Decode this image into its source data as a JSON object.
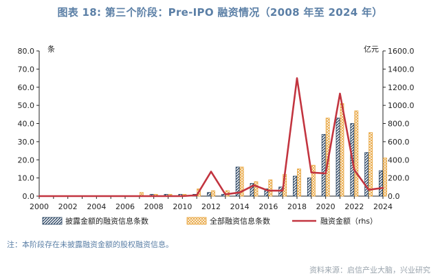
{
  "title": "图表 18: 第三个阶段：Pre-IPO 融资情况（2008 年至 2024 年）",
  "note": "注：本阶段存在未披露融资金额的股权融资信息。",
  "source": "资料来源：启信产业大脑，兴业研究",
  "colors": {
    "title": "#5b7fa6",
    "disclosed_bar": "#1f3b5a",
    "total_bar": "#e8a33a",
    "amount_line": "#c2343f"
  },
  "chart_data": {
    "type": "bar+line",
    "categories": [
      "2000",
      "2001",
      "2002",
      "2003",
      "2004",
      "2005",
      "2006",
      "2007",
      "2008",
      "2009",
      "2010",
      "2011",
      "2012",
      "2013",
      "2014",
      "2015",
      "2016",
      "2017",
      "2018",
      "2019",
      "2020",
      "2021",
      "2022",
      "2023",
      "2024"
    ],
    "x_tick_labels": [
      "2000",
      "2002",
      "2004",
      "2006",
      "2008",
      "2010",
      "2012",
      "2014",
      "2016",
      "2018",
      "2020",
      "2022",
      "2024"
    ],
    "y_left": {
      "unit": "条",
      "ylim": [
        0,
        80
      ],
      "ticks": [
        "0.0",
        "10.0",
        "20.0",
        "30.0",
        "40.0",
        "50.0",
        "60.0",
        "70.0",
        "80.0"
      ]
    },
    "y_right": {
      "unit": "亿元",
      "ylim": [
        0,
        1600
      ],
      "ticks": [
        "0.0",
        "200.0",
        "400.0",
        "600.0",
        "800.0",
        "1000.0",
        "1200.0",
        "1400.0",
        "1600.0"
      ]
    },
    "series": [
      {
        "name": "披露金额的融资信息条数",
        "type": "bar",
        "axis": "left",
        "pattern": "diagonal-hatch",
        "values": [
          0,
          0,
          0,
          0,
          0,
          0,
          0,
          0,
          1,
          1,
          1,
          1,
          2,
          1,
          16,
          7,
          4,
          5,
          11,
          10,
          34,
          43,
          40,
          24,
          14
        ]
      },
      {
        "name": "全部融资信息条数",
        "type": "bar",
        "axis": "left",
        "pattern": "cross-hatch",
        "values": [
          0,
          0,
          0,
          0,
          0,
          0,
          0,
          2,
          1,
          1,
          1,
          4,
          3,
          3,
          16,
          8,
          9,
          12,
          15,
          17,
          43,
          51,
          47,
          35,
          21
        ]
      },
      {
        "name": "融资金额（rhs）",
        "type": "line",
        "axis": "right",
        "values": [
          0,
          0,
          0,
          0,
          0,
          0,
          0,
          0,
          0,
          0,
          0,
          10,
          270,
          20,
          40,
          120,
          60,
          60,
          1300,
          260,
          250,
          1130,
          290,
          70,
          90
        ]
      }
    ],
    "grid": false,
    "legend": "bottom"
  }
}
